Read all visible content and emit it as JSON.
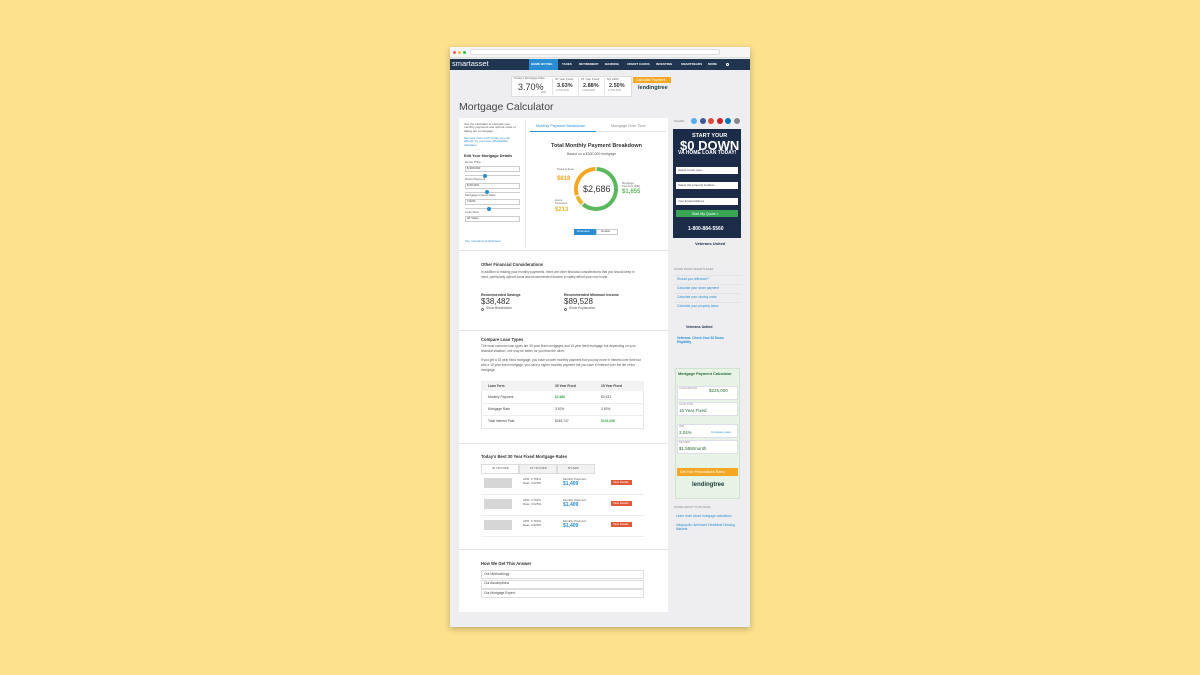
{
  "nav": {
    "logo": "smartasset",
    "items": [
      "HOME BUYING",
      "TAXES",
      "RETIREMENT",
      "BANKING",
      "CREDIT CARDS",
      "INVESTING",
      "SMARTREADS",
      "MORE"
    ]
  },
  "rates": {
    "label": "Today's Mortgage Rate",
    "rate": "3.70%",
    "unit": "APR",
    "columns": [
      {
        "name": "30 Year Fixed",
        "rate": "3.63%",
        "apr": "3.70% APR"
      },
      {
        "name": "15 Year Fixed",
        "rate": "2.88%",
        "apr": "2.94% APR"
      },
      {
        "name": "5/1 ARM",
        "rate": "2.50%",
        "apr": "2.79% APR"
      }
    ],
    "cta": "Calculate Payment",
    "brand": "lendingtree"
  },
  "page_title": "Mortgage Calculator",
  "form": {
    "intro": "Use the calculator to estimate your monthly payments and upfront costs of taking out a mortgage.",
    "note": "Not sure how much house you can afford? Try our home affordability calculator.",
    "heading": "Edit Your Mortgage Details",
    "fields": [
      {
        "label": "Home Price",
        "value": "$ 300,000"
      },
      {
        "label": "Down Payment",
        "value": "$ 60,000"
      },
      {
        "label": "Mortgage Interest Rate",
        "value": "3.92%"
      },
      {
        "label": "Loan Term",
        "value": "30 Years"
      }
    ],
    "footer": "Tax, insurance & HOA fees"
  },
  "tabs": [
    "Monthly Payment Breakdown",
    "Mortgage Over Time"
  ],
  "breakdown": {
    "title": "Total Monthly Payment Breakdown",
    "subtitle": "Based on a $300,000 mortgage",
    "total": "$2,686",
    "segments": [
      {
        "name": "Taxes & Fees",
        "value": 818,
        "value_label": "$818",
        "color": "#f5a623"
      },
      {
        "name": "Mortgage Payment (P&I)",
        "value": 1655,
        "value_label": "$1,655",
        "color": "#5cb85c"
      },
      {
        "name": "Home Insurance",
        "value": 213,
        "value_label": "$213",
        "color": "#e8b530"
      }
    ],
    "buttons": [
      "Overview",
      "Details"
    ]
  },
  "other": {
    "heading": "Other Financial Considerations",
    "text": "In addition to making your monthly payments, there are other financial considerations that you should keep in mind, particularly upfront costs and recommended income to safely afford your new home.",
    "items": [
      {
        "label": "Recommended Savings",
        "value": "$38,482",
        "link": "Show Breakdown"
      },
      {
        "label": "Recommended Minimum Income",
        "value": "$89,528",
        "link": "Show Explanation"
      }
    ]
  },
  "compare": {
    "heading": "Compare Loan Types",
    "text1": "The most common loan types are 30 year fixed mortgages and 15 year fixed mortgage but depending on your financial situation, one may be better for you than the other.",
    "text2": "If you get a 30 year fixed mortgage, you have a lower monthly payment but you pay more in interest over time but with a 15 year fixed mortgage, you have a higher monthly payment but you save in interest over the life of the mortgage.",
    "table": {
      "header": [
        "Loan Term",
        "30 Year Fixed",
        "15 Year Fixed"
      ],
      "rows": [
        [
          "Monthly Payment",
          "$2,686",
          "$3,431"
        ],
        [
          "Mortgage Rate",
          "3.92%",
          "3.92%"
        ],
        [
          "Total Interest Paid",
          "$245,747",
          "$104,098"
        ]
      ]
    }
  },
  "best": {
    "heading": "Today's Best 30 Year Fixed Mortgage Rates",
    "tabs": [
      "30 YR FIXED",
      "15 YR FIXED",
      "5/1 ARM"
    ],
    "offers": [
      {
        "apr": "APR: 3.763%",
        "rate": "Rate: 3.625%",
        "payment_label": "Monthly Payment",
        "payment": "$1,409",
        "button": "View Details"
      },
      {
        "apr": "APR: 3.763%",
        "rate": "Rate: 3.625%",
        "payment_label": "Monthly Payment",
        "payment": "$1,409",
        "button": "View Details"
      },
      {
        "apr": "APR: 3.763%",
        "rate": "Rate: 3.625%",
        "payment_label": "Monthly Payment",
        "payment": "$1,409",
        "button": "View Details"
      }
    ]
  },
  "how": {
    "heading": "How We Get This Answer",
    "items": [
      "Our Methodology",
      "Our Assumptions",
      "Our Mortgage Expert"
    ]
  },
  "sidebar": {
    "share": "SHARE",
    "ad": {
      "line1": "START YOUR",
      "line2": "$0 DOWN",
      "line3": "VA HOME LOAN TODAY!",
      "select1": "Select a loan type...",
      "select2": "Select the property location...",
      "email": "Your Email Address",
      "button": "Start My Quote »",
      "phone": "1-800-884-5560",
      "brand": "Veterans United"
    },
    "more_heading": "MORE FROM SMARTASSET",
    "more_links": [
      "Should you refinance?",
      "Calculate your down payment",
      "Calculate your closing costs",
      "Calculate your property taxes"
    ],
    "ad2": {
      "brand": "Veterans United",
      "title": "Veterans: Check Your $0 Down Eligibility"
    },
    "calc": {
      "title": "Mortgage Payment Calculator",
      "amount_label": "LOAN AMOUNT",
      "amount": "$225,000",
      "type_label": "LOAN TYPE",
      "type": "15 Year Fixed",
      "apr_label": "APR",
      "apr": "3.04%",
      "compare": "Compare rates",
      "payment_label": "PAYMENT",
      "payment": "$1,558/month",
      "button": "Get Your Personalized Rates",
      "brand": "lendingtree"
    },
    "about_heading": "MORE ABOUT THIS PAGE",
    "about_links": [
      "Learn more about mortgage calculators",
      "Infographic: America's Healthiest Housing Markets"
    ]
  }
}
